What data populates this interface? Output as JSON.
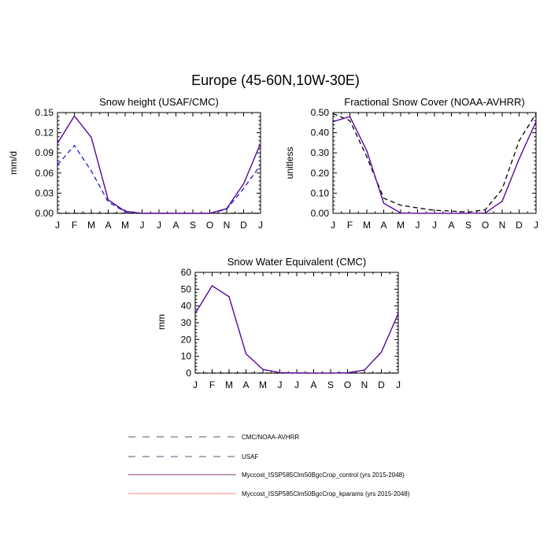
{
  "figure_title": "Europe (45-60N,10W-30E)",
  "colors": {
    "obs_dash": "#000000",
    "usaf_dash": "#1f1fcc",
    "control": "#4b0fa8",
    "kparams": "#ff2a2a",
    "legend_obs": "#555555",
    "legend_usaf": "#555577",
    "legend_control": "#7a3b7a",
    "legend_kparams": "#ff8080"
  },
  "chart_data": [
    {
      "type": "line",
      "title": "Snow height (USAF/CMC)",
      "ylabel": "mm/d",
      "xlabel": "",
      "categories": [
        "J",
        "F",
        "M",
        "A",
        "M",
        "J",
        "J",
        "A",
        "S",
        "O",
        "N",
        "D",
        "J"
      ],
      "ylim": [
        0,
        0.15
      ],
      "yticks": [
        "0.00",
        "0.03",
        "0.06",
        "0.09",
        "0.12",
        "0.15"
      ],
      "series": [
        {
          "name": "CMC/NOAA-AVHRR",
          "style": "dash",
          "color": "obs_dash",
          "values": [
            0,
            0,
            0,
            0,
            0,
            0,
            0,
            0,
            0,
            0,
            0,
            0,
            0
          ]
        },
        {
          "name": "USAF",
          "style": "dash",
          "color": "usaf_dash",
          "values": [
            0.072,
            0.101,
            0.063,
            0.017,
            0.002,
            0,
            0,
            0,
            0,
            0,
            0.006,
            0.037,
            0.072
          ]
        },
        {
          "name": "Myccost_ISSP585Clm50BgcCrop_kparams (yrs 2015-2048)",
          "style": "solid",
          "color": "kparams",
          "values": [
            0.104,
            0.145,
            0.113,
            0.02,
            0.003,
            0,
            0,
            0,
            0,
            0,
            0.007,
            0.044,
            0.104
          ]
        },
        {
          "name": "Myccost_ISSP585Clm50BgcCrop_control (yrs 2015-2048)",
          "style": "solid",
          "color": "control",
          "values": [
            0.104,
            0.145,
            0.113,
            0.02,
            0.003,
            0,
            0,
            0,
            0,
            0,
            0.007,
            0.044,
            0.104
          ]
        }
      ]
    },
    {
      "type": "line",
      "title": "Fractional Snow Cover (NOAA-AVHRR)",
      "ylabel": "unitless",
      "xlabel": "",
      "categories": [
        "J",
        "F",
        "M",
        "A",
        "M",
        "J",
        "J",
        "A",
        "S",
        "O",
        "N",
        "D",
        "J"
      ],
      "ylim": [
        0,
        0.5
      ],
      "yticks": [
        "0.00",
        "0.10",
        "0.20",
        "0.30",
        "0.40",
        "0.50"
      ],
      "series": [
        {
          "name": "CMC/NOAA-AVHRR",
          "style": "dash",
          "color": "obs_dash",
          "values": [
            0.495,
            0.46,
            0.28,
            0.075,
            0.04,
            0.027,
            0.015,
            0.011,
            0.006,
            0.018,
            0.12,
            0.36,
            0.495
          ]
        },
        {
          "name": "Myccost_ISSP585Clm50BgcCrop_kparams (yrs 2015-2048)",
          "style": "solid",
          "color": "kparams",
          "values": [
            0.455,
            0.48,
            0.31,
            0.05,
            0.002,
            0,
            0,
            0,
            0,
            0.002,
            0.06,
            0.27,
            0.455
          ]
        },
        {
          "name": "Myccost_ISSP585Clm50BgcCrop_control (yrs 2015-2048)",
          "style": "solid",
          "color": "control",
          "values": [
            0.455,
            0.48,
            0.31,
            0.05,
            0.002,
            0,
            0,
            0,
            0,
            0.002,
            0.06,
            0.27,
            0.455
          ]
        }
      ]
    },
    {
      "type": "line",
      "title": "Snow Water Equivalent (CMC)",
      "ylabel": "mm",
      "xlabel": "",
      "categories": [
        "J",
        "F",
        "M",
        "A",
        "M",
        "J",
        "J",
        "A",
        "S",
        "O",
        "N",
        "D",
        "J"
      ],
      "ylim": [
        0,
        60
      ],
      "yticks": [
        "0",
        "10",
        "20",
        "30",
        "40",
        "50",
        "60"
      ],
      "series": [
        {
          "name": "CMC/NOAA-AVHRR",
          "style": "dash",
          "color": "obs_dash",
          "values": [
            0,
            0,
            0,
            0,
            0,
            0,
            0,
            0,
            0,
            0,
            0,
            0,
            0
          ]
        },
        {
          "name": "Myccost_ISSP585Clm50BgcCrop_kparams (yrs 2015-2048)",
          "style": "solid",
          "color": "kparams",
          "values": [
            35.5,
            52,
            45.5,
            11.5,
            2.2,
            0.3,
            0.1,
            0,
            0,
            0.2,
            1.8,
            12.5,
            35.5
          ]
        },
        {
          "name": "Myccost_ISSP585Clm50BgcCrop_control (yrs 2015-2048)",
          "style": "solid",
          "color": "control",
          "values": [
            35.5,
            52,
            45.5,
            11.5,
            2.2,
            0.3,
            0.1,
            0,
            0,
            0.2,
            1.8,
            12.5,
            35.5
          ]
        }
      ]
    }
  ],
  "legend": [
    {
      "label": "CMC/NOAA-AVHRR",
      "style": "dash",
      "color": "legend_obs"
    },
    {
      "label": "USAF",
      "style": "dash",
      "color": "legend_usaf"
    },
    {
      "label": "Myccost_ISSP585Clm50BgcCrop_control (yrs 2015-2048)",
      "style": "solid",
      "color": "legend_control"
    },
    {
      "label": "Myccost_ISSP585Clm50BgcCrop_kparams (yrs 2015-2048)",
      "style": "solid",
      "color": "legend_kparams"
    }
  ]
}
